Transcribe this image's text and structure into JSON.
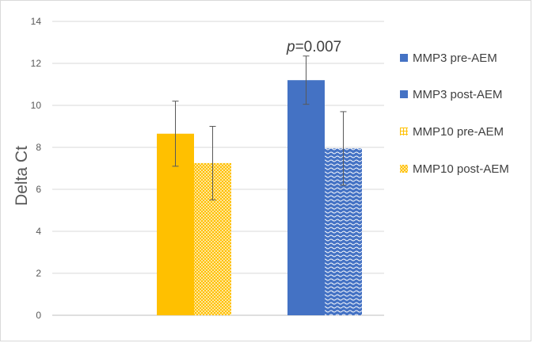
{
  "chart_data": {
    "type": "bar",
    "title": "",
    "ylabel": "Delta Ct",
    "xlabel": "",
    "ylim": [
      0,
      14
    ],
    "yticks": [
      0,
      2,
      4,
      6,
      8,
      10,
      12,
      14
    ],
    "grid": true,
    "legend_position": "right",
    "groups": [
      {
        "bars": [
          {
            "series": "MMP10  pre-AEM",
            "value": 8.65,
            "error": 1.55,
            "color": "#FFC000",
            "pattern": "solid"
          },
          {
            "series": "MMP10 post-AEM",
            "value": 7.25,
            "error": 1.75,
            "color": "#FFD966",
            "pattern": "check"
          }
        ]
      },
      {
        "bars": [
          {
            "series": "MMP3 pre-AEM",
            "value": 11.2,
            "error": 1.15,
            "color": "#4472C4",
            "pattern": "solid"
          },
          {
            "series": "MMP3 post-AEM",
            "value": 7.95,
            "error": 1.75,
            "color": "#4472C4",
            "pattern": "wave"
          }
        ]
      }
    ],
    "annotation": {
      "italic": "p",
      "text": "=0.007"
    },
    "legend": [
      {
        "label": "MMP3 pre-AEM",
        "color": "#4472C4",
        "pattern": "solid"
      },
      {
        "label": "MMP3 post-AEM",
        "color": "#4472C4",
        "pattern": "solid"
      },
      {
        "label": "MMP10  pre-AEM",
        "color": "#FFC000",
        "pattern": "hash"
      },
      {
        "label": "MMP10 post-AEM",
        "color": "#FFC000",
        "pattern": "check"
      }
    ]
  }
}
